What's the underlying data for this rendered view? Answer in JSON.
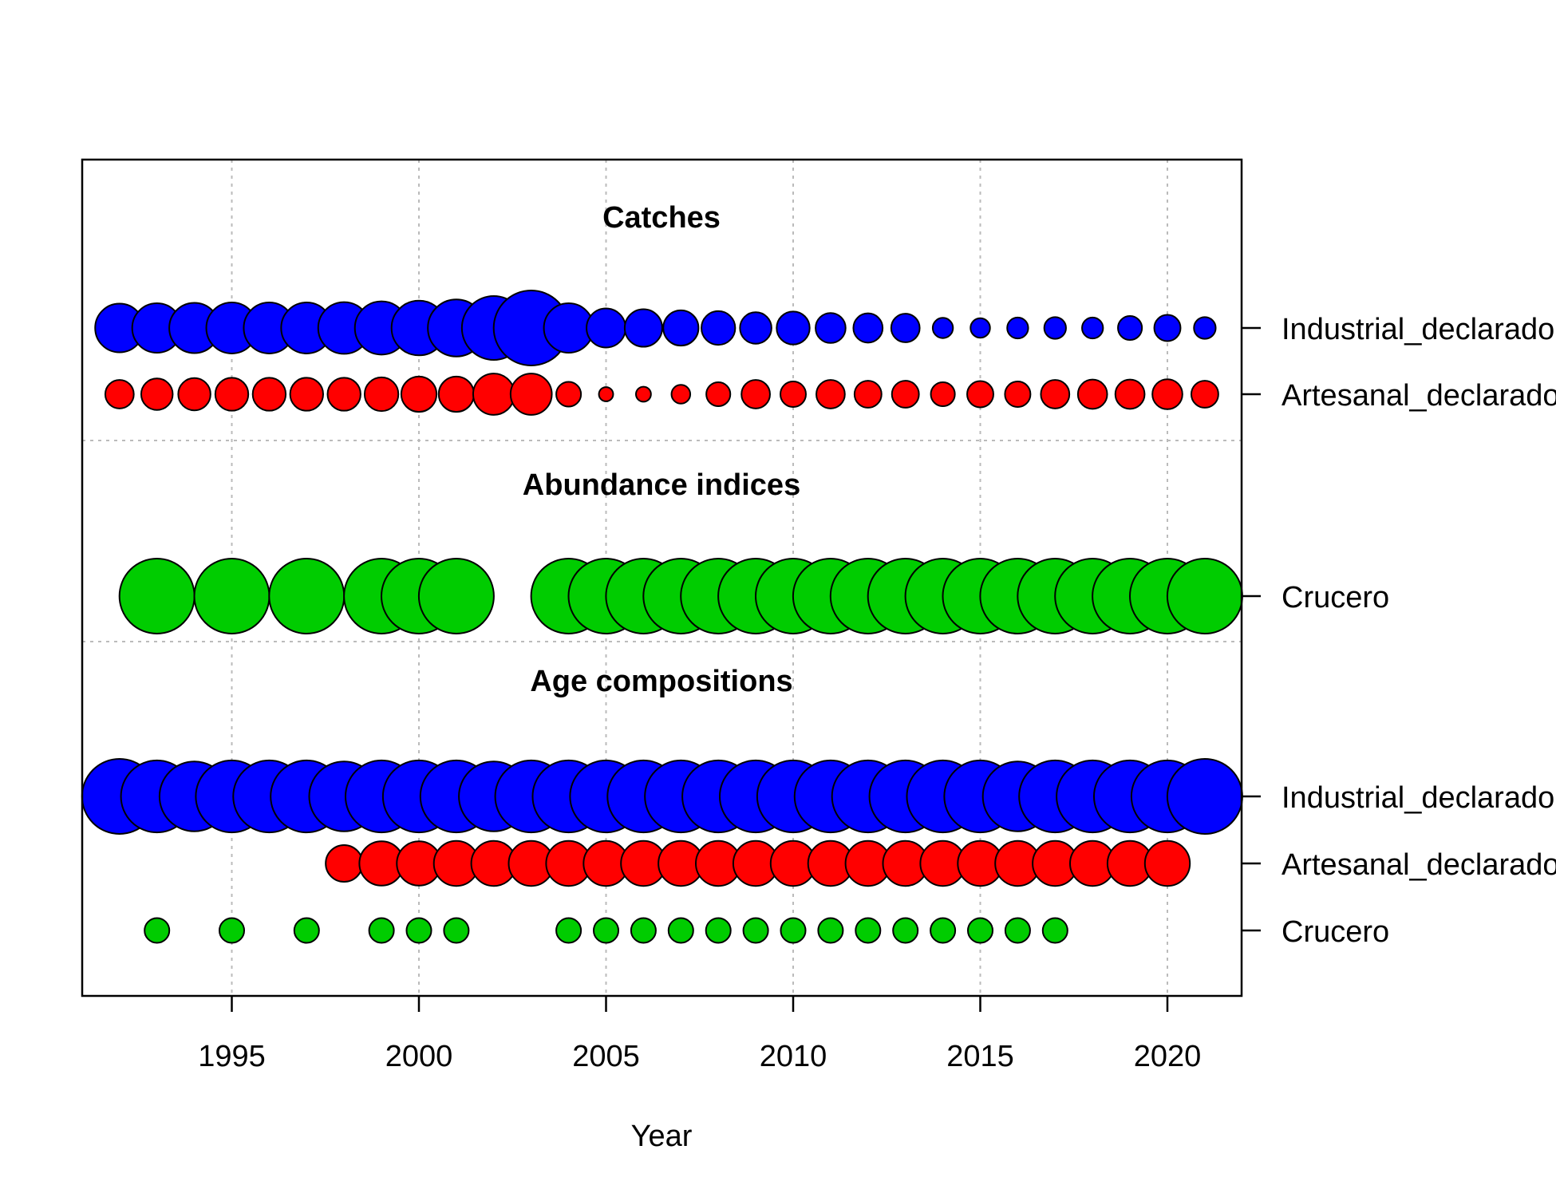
{
  "chart_data": {
    "type": "scatter",
    "subtype": "data-availability bubble plot",
    "xlabel": "Year",
    "xlim": [
      1991,
      2022
    ],
    "x_ticks": [
      1995,
      2000,
      2005,
      2010,
      2015,
      2020
    ],
    "grid": true,
    "colors": {
      "industrial": "#0000FF",
      "artesanal": "#FF0000",
      "crucero": "#00CC00"
    },
    "groups": [
      {
        "title": "Catches",
        "series": [
          {
            "name": "Industrial_declarado",
            "color": "#0000FF",
            "x": [
              1992,
              1993,
              1994,
              1995,
              1996,
              1997,
              1998,
              1999,
              2000,
              2001,
              2002,
              2003,
              2004,
              2005,
              2006,
              2007,
              2008,
              2009,
              2010,
              2011,
              2012,
              2013,
              2014,
              2015,
              2016,
              2017,
              2018,
              2019,
              2020,
              2021
            ],
            "values": [
              0.65,
              0.66,
              0.67,
              0.68,
              0.68,
              0.68,
              0.69,
              0.71,
              0.73,
              0.76,
              0.85,
              1.0,
              0.66,
              0.52,
              0.5,
              0.47,
              0.45,
              0.42,
              0.44,
              0.4,
              0.39,
              0.38,
              0.27,
              0.26,
              0.28,
              0.29,
              0.28,
              0.32,
              0.35,
              0.29
            ]
          },
          {
            "name": "Artesanal_declarado",
            "color": "#FF0000",
            "x": [
              1992,
              1993,
              1994,
              1995,
              1996,
              1997,
              1998,
              1999,
              2000,
              2001,
              2002,
              2003,
              2004,
              2005,
              2006,
              2007,
              2008,
              2009,
              2010,
              2011,
              2012,
              2013,
              2014,
              2015,
              2016,
              2017,
              2018,
              2019,
              2020,
              2021
            ],
            "values": [
              0.38,
              0.42,
              0.43,
              0.44,
              0.44,
              0.44,
              0.44,
              0.45,
              0.47,
              0.47,
              0.55,
              0.55,
              0.33,
              0.19,
              0.2,
              0.25,
              0.32,
              0.38,
              0.34,
              0.38,
              0.36,
              0.36,
              0.32,
              0.35,
              0.34,
              0.38,
              0.39,
              0.39,
              0.4,
              0.36
            ]
          }
        ]
      },
      {
        "title": "Abundance indices",
        "series": [
          {
            "name": "Crucero",
            "color": "#00CC00",
            "x": [
              1993,
              1995,
              1997,
              1999,
              2000,
              2001,
              2004,
              2005,
              2006,
              2007,
              2008,
              2009,
              2010,
              2011,
              2012,
              2013,
              2014,
              2015,
              2016,
              2017,
              2018,
              2019,
              2020,
              2021
            ],
            "values": [
              1,
              1,
              1,
              1,
              1,
              1,
              1,
              1,
              1,
              1,
              1,
              1,
              1,
              1,
              1,
              1,
              1,
              1,
              1,
              1,
              1,
              1,
              1,
              1
            ]
          }
        ]
      },
      {
        "title": "Age compositions",
        "series": [
          {
            "name": "Industrial_declarado",
            "color": "#0000FF",
            "x": [
              1992,
              1993,
              1994,
              1995,
              1996,
              1997,
              1998,
              1999,
              2000,
              2001,
              2002,
              2003,
              2004,
              2005,
              2006,
              2007,
              2008,
              2009,
              2010,
              2011,
              2012,
              2013,
              2014,
              2015,
              2016,
              2017,
              2018,
              2019,
              2020,
              2021
            ],
            "values": [
              1.0,
              0.96,
              0.93,
              0.96,
              0.96,
              0.96,
              0.93,
              0.96,
              0.96,
              0.96,
              0.93,
              0.96,
              0.96,
              0.96,
              0.96,
              0.96,
              0.96,
              0.96,
              0.96,
              0.96,
              0.96,
              0.96,
              0.96,
              0.96,
              0.93,
              0.96,
              0.96,
              0.96,
              0.96,
              1.0
            ]
          },
          {
            "name": "Artesanal_declarado",
            "color": "#FF0000",
            "x": [
              1998,
              1999,
              2000,
              2001,
              2002,
              2003,
              2004,
              2005,
              2006,
              2007,
              2008,
              2009,
              2010,
              2011,
              2012,
              2013,
              2014,
              2015,
              2016,
              2017,
              2018,
              2019,
              2020
            ],
            "values": [
              0.49,
              0.59,
              0.59,
              0.6,
              0.6,
              0.6,
              0.6,
              0.6,
              0.6,
              0.6,
              0.6,
              0.6,
              0.6,
              0.6,
              0.6,
              0.6,
              0.6,
              0.6,
              0.6,
              0.6,
              0.6,
              0.6,
              0.6
            ]
          },
          {
            "name": "Crucero",
            "color": "#00CC00",
            "x": [
              1993,
              1995,
              1997,
              1999,
              2000,
              2001,
              2004,
              2005,
              2006,
              2007,
              2008,
              2009,
              2010,
              2011,
              2012,
              2013,
              2014,
              2015,
              2016,
              2017
            ],
            "values": [
              0.33,
              0.33,
              0.33,
              0.33,
              0.33,
              0.33,
              0.33,
              0.33,
              0.33,
              0.33,
              0.33,
              0.33,
              0.33,
              0.33,
              0.33,
              0.33,
              0.33,
              0.33,
              0.33,
              0.33
            ]
          }
        ]
      }
    ],
    "row_labels": [
      "Industrial_declarado",
      "Artesanal_declarado",
      "Crucero",
      "Industrial_declarado",
      "Artesanal_declarado",
      "Crucero"
    ]
  }
}
